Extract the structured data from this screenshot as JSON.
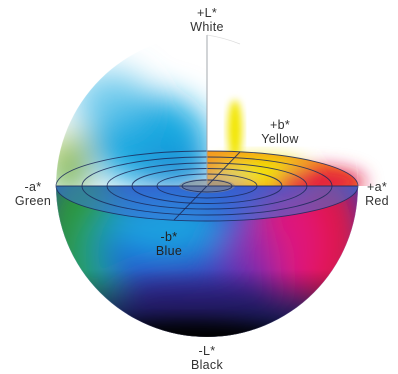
{
  "axes": {
    "plus_l": {
      "sign": "+L*",
      "name": "White"
    },
    "minus_l": {
      "sign": "-L*",
      "name": "Black"
    },
    "plus_a": {
      "sign": "+a*",
      "name": "Red"
    },
    "minus_a": {
      "sign": "-a*",
      "name": "Green"
    },
    "plus_b": {
      "sign": "+b*",
      "name": "Yellow"
    },
    "minus_b": {
      "sign": "-b*",
      "name": "Blue"
    }
  },
  "colors": {
    "white": "#ffffff",
    "black": "#050505",
    "red": "#e3183f",
    "magenta": "#e0187a",
    "green": "#2f9a2e",
    "yellow": "#f2e600",
    "orange": "#f28a1e",
    "blue": "#1f5fd6",
    "cyan": "#19a8e0",
    "violet": "#3a2aa8",
    "grid_line": "#1b2a5a"
  }
}
